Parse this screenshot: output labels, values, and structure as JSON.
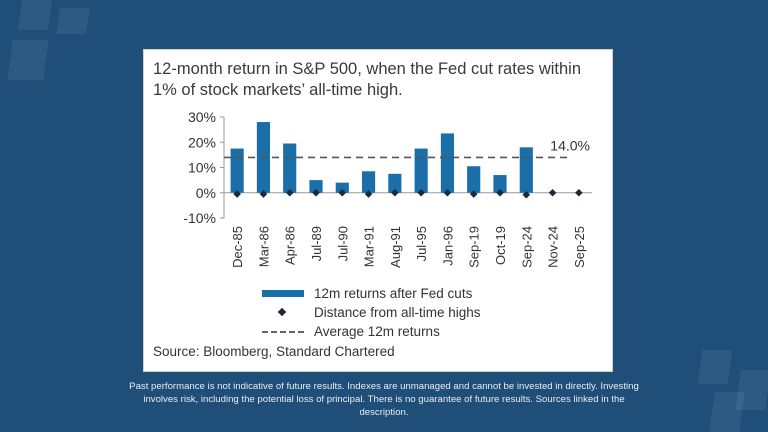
{
  "chart_data": {
    "type": "bar",
    "title": "12-month return in S&P 500, when the Fed cut rates within 1% of stock markets’ all-time high.",
    "categories": [
      "Dec-85",
      "Mar-86",
      "Apr-86",
      "Jul-89",
      "Jul-90",
      "Mar-91",
      "Aug-91",
      "Jul-95",
      "Jan-96",
      "Sep-19",
      "Oct-19",
      "Sep-24",
      "Nov-24",
      "Sep-25"
    ],
    "series": [
      {
        "name": "12m returns after Fed cuts",
        "values": [
          17.5,
          28,
          19.5,
          5,
          4,
          8.5,
          7.5,
          17.5,
          23.5,
          10.5,
          7,
          18,
          null,
          null
        ],
        "color": "#1a6fa8"
      },
      {
        "name": "Distance from all-time highs",
        "values": [
          -0.5,
          -0.5,
          0,
          0,
          0,
          -0.5,
          0,
          0,
          0,
          -0.5,
          0,
          -0.8,
          0,
          0
        ],
        "color": "#1b2a3a"
      }
    ],
    "average": {
      "name": "Average 12m returns",
      "value": 14.0,
      "label": "14.0%"
    },
    "ylim": [
      -10,
      30
    ],
    "yticks": [
      -10,
      0,
      10,
      20,
      30
    ],
    "ytick_labels": [
      "-10%",
      "0%",
      "10%",
      "20%",
      "30%"
    ],
    "xlabel": "",
    "ylabel": "",
    "legend_position": "bottom"
  },
  "source": "Source: Bloomberg, Standard Chartered",
  "disclaimer": "Past performance is not indicative of future results. Indexes are unmanaged and cannot be invested in directly. Investing involves risk, including the potential loss of principal. There is no guarantee of future results. Sources linked in the description."
}
